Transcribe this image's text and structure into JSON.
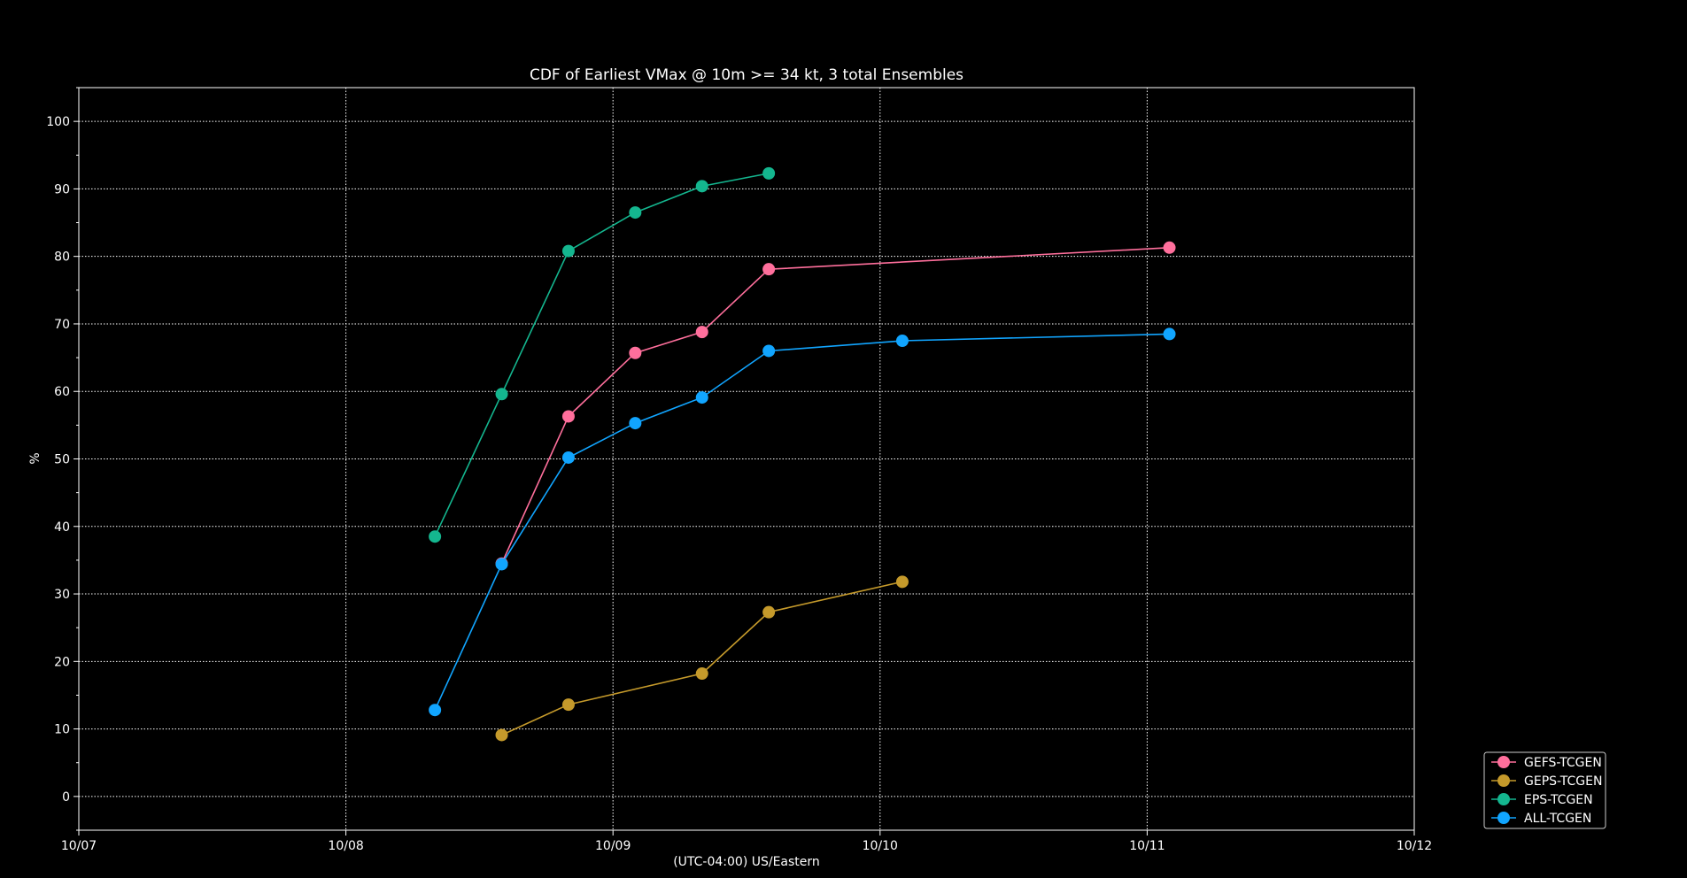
{
  "chart_data": {
    "type": "line",
    "title": "CDF of Earliest VMax @ 10m >= 34 kt, 3 total Ensembles",
    "xlabel": "(UTC-04:00) US/Eastern",
    "ylabel": "%",
    "x_unit": "date (month/day, fractional hours as time of day)",
    "xlim": [
      "10/07 00:00",
      "10/12 00:00"
    ],
    "ylim": [
      -5,
      105
    ],
    "x_ticks": [
      "10/07",
      "10/08",
      "10/09",
      "10/10",
      "10/11",
      "10/12"
    ],
    "y_ticks": [
      0,
      10,
      20,
      30,
      40,
      50,
      60,
      70,
      80,
      90,
      100
    ],
    "grid": true,
    "legend_position": "lower-right-outside",
    "colors": {
      "background": "#000000",
      "axis": "#ffffff",
      "grid": "#ffffff"
    },
    "series": [
      {
        "name": "GEFS-TCGEN",
        "color": "#ff6f9c",
        "x": [
          "10/08 14:00",
          "10/08 20:00",
          "10/09 02:00",
          "10/09 08:00",
          "10/09 14:00",
          "10/11 02:00"
        ],
        "y": [
          34.5,
          56.3,
          65.7,
          68.8,
          78.1,
          81.3
        ]
      },
      {
        "name": "GEPS-TCGEN",
        "color": "#c59a2b",
        "x": [
          "10/08 14:00",
          "10/08 20:00",
          "10/09 08:00",
          "10/09 14:00",
          "10/10 02:00"
        ],
        "y": [
          9.1,
          13.6,
          18.2,
          27.3,
          31.8
        ]
      },
      {
        "name": "EPS-TCGEN",
        "color": "#14b68f",
        "x": [
          "10/08 08:00",
          "10/08 14:00",
          "10/08 20:00",
          "10/09 02:00",
          "10/09 08:00",
          "10/09 14:00"
        ],
        "y": [
          38.5,
          59.6,
          80.8,
          86.5,
          90.4,
          92.3
        ]
      },
      {
        "name": "ALL-TCGEN",
        "color": "#11a5ff",
        "x": [
          "10/08 08:00",
          "10/08 14:00",
          "10/08 20:00",
          "10/09 02:00",
          "10/09 08:00",
          "10/09 14:00",
          "10/10 02:00",
          "10/11 02:00"
        ],
        "y": [
          12.8,
          34.4,
          50.2,
          55.3,
          59.1,
          66.0,
          67.5,
          68.5
        ]
      }
    ]
  }
}
